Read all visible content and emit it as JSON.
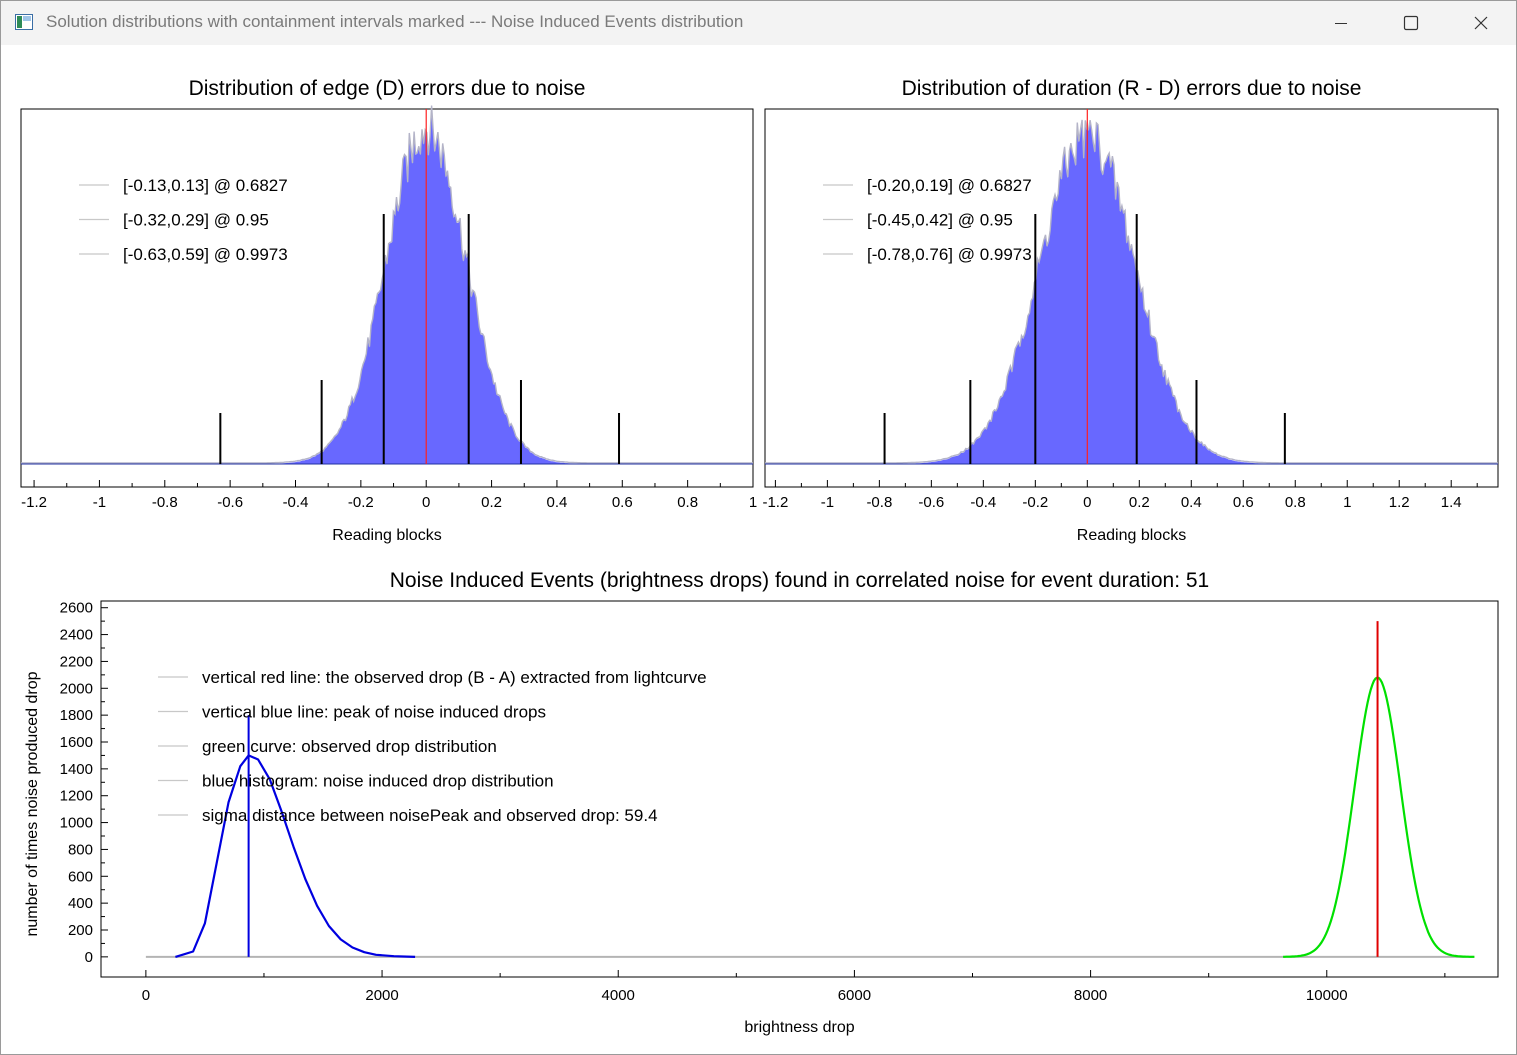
{
  "window": {
    "title": "Solution distributions with containment intervals marked --- Noise Induced Events distribution",
    "controls": [
      "minimize-icon",
      "maximize-icon",
      "close-icon"
    ]
  },
  "colors": {
    "histogram_fill": "#6060ff",
    "histogram_edge": "#b4b4c8",
    "zero_line": "#ff2020",
    "interval_marks": "#000000",
    "noise_curve": "#0000e0",
    "observed_curve": "#00e000",
    "observed_line": "#e00000"
  },
  "chart_data": [
    {
      "type": "bar",
      "title": "Distribution of edge (D) errors due to noise",
      "xlabel": "Reading blocks",
      "ylabel": "",
      "x_ticks": [
        "-1.2",
        "-1",
        "-0.8",
        "-0.6",
        "-0.4",
        "-0.2",
        "0",
        "0.2",
        "0.4",
        "0.6",
        "0.8",
        "1"
      ],
      "xlim": [
        -1.24,
        1.0
      ],
      "distribution": {
        "center": 0.0,
        "sigma": 0.13
      },
      "legend_position": "top-left",
      "legend": [
        "[-0.13,0.13] @ 0.6827",
        "[-0.32,0.29] @ 0.95",
        "[-0.63,0.59] @ 0.9973"
      ],
      "intervals": [
        {
          "low": -0.13,
          "high": 0.13,
          "level": 0.6827
        },
        {
          "low": -0.32,
          "high": 0.29,
          "level": 0.95
        },
        {
          "low": -0.63,
          "high": 0.59,
          "level": 0.9973
        }
      ],
      "zero_line": 0
    },
    {
      "type": "bar",
      "title": "Distribution of duration (R - D) errors due to noise",
      "xlabel": "Reading blocks",
      "ylabel": "",
      "x_ticks": [
        "-1.2",
        "-1",
        "-0.8",
        "-0.6",
        "-0.4",
        "-0.2",
        "0",
        "0.2",
        "0.4",
        "0.6",
        "0.8",
        "1",
        "1.2",
        "1.4"
      ],
      "xlim": [
        -1.24,
        1.58
      ],
      "distribution": {
        "center": 0.0,
        "sigma": 0.195
      },
      "legend_position": "top-left",
      "legend": [
        "[-0.20,0.19] @ 0.6827",
        "[-0.45,0.42] @ 0.95",
        "[-0.78,0.76] @ 0.9973"
      ],
      "intervals": [
        {
          "low": -0.2,
          "high": 0.19,
          "level": 0.6827
        },
        {
          "low": -0.45,
          "high": 0.42,
          "level": 0.95
        },
        {
          "low": -0.78,
          "high": 0.76,
          "level": 0.9973
        }
      ],
      "zero_line": 0
    },
    {
      "type": "line",
      "title": "Noise Induced Events (brightness drops) found in correlated noise for event duration: 51",
      "xlabel": "brightness drop",
      "ylabel": "number of times noise produced drop",
      "x_ticks": [
        "0",
        "2000",
        "4000",
        "6000",
        "8000",
        "10000"
      ],
      "y_ticks": [
        "0",
        "200",
        "400",
        "600",
        "800",
        "1000",
        "1200",
        "1400",
        "1600",
        "1800",
        "2000",
        "2200",
        "2400",
        "2600"
      ],
      "xlim": [
        -380,
        11450
      ],
      "ylim": [
        -150,
        2650
      ],
      "legend_position": "top-left",
      "legend": [
        "vertical red line: the observed drop (B - A) extracted from lightcurve",
        "vertical blue line: peak of noise induced drops",
        "green curve: observed drop distribution",
        "blue histogram: noise induced drop distribution",
        "sigma distance between noisePeak and observed drop: 59.4"
      ],
      "series": [
        {
          "name": "blue histogram: noise induced drop distribution",
          "x": [
            250,
            400,
            500,
            600,
            700,
            800,
            870,
            950,
            1050,
            1150,
            1250,
            1350,
            1450,
            1550,
            1650,
            1750,
            1850,
            1950,
            2100,
            2280
          ],
          "y": [
            0,
            40,
            250,
            700,
            1150,
            1420,
            1500,
            1470,
            1320,
            1080,
            820,
            580,
            380,
            230,
            130,
            70,
            35,
            15,
            5,
            0
          ]
        },
        {
          "name": "green curve: observed drop distribution",
          "center": 10430,
          "sigma": 195,
          "peak": 2080,
          "range": [
            9630,
            11250
          ]
        }
      ],
      "markers": {
        "noise_peak_x": 870,
        "noise_peak_line_top": 1800,
        "observed_drop_x": 10430,
        "observed_line_top": 2500
      }
    }
  ]
}
